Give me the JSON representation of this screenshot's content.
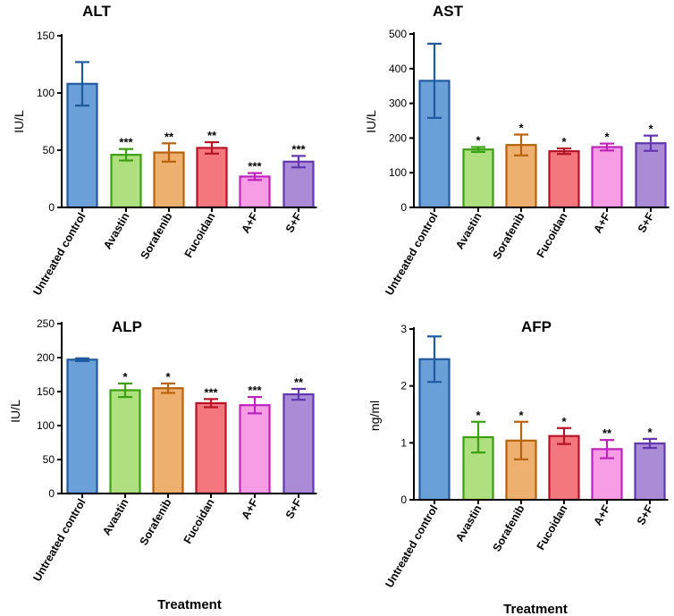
{
  "chart_data": [
    {
      "type": "bar",
      "title": "ALT",
      "ylabel": "IU/L",
      "xlabel": "",
      "ylim": [
        0,
        150
      ],
      "yticks": [
        0,
        50,
        100,
        150
      ],
      "ytick_labels": [
        "0",
        "50",
        "100",
        "150"
      ],
      "categories": [
        "Untreated control",
        "Avastin",
        "Sorafenib",
        "Fucoidan",
        "A+F",
        "S+F"
      ],
      "values": [
        108,
        46,
        48,
        52,
        27,
        40
      ],
      "errors": [
        19,
        5,
        8,
        5,
        3,
        5
      ],
      "significance": [
        "",
        "***",
        "**",
        "**",
        "***",
        "***"
      ]
    },
    {
      "type": "bar",
      "title": "AST",
      "ylabel": "IU/L",
      "xlabel": "",
      "ylim": [
        0,
        500
      ],
      "yticks": [
        0,
        100,
        200,
        300,
        400,
        500
      ],
      "ytick_labels": [
        "0",
        "100",
        "200",
        "300",
        "400",
        "500"
      ],
      "categories": [
        "Untreated control",
        "Avastin",
        "Sorafenib",
        "Fucoidan",
        "A+F",
        "S+F"
      ],
      "values": [
        365,
        167,
        180,
        162,
        174,
        185
      ],
      "errors": [
        107,
        7,
        30,
        8,
        10,
        22
      ],
      "significance": [
        "",
        "*",
        "*",
        "*",
        "*",
        "*"
      ]
    },
    {
      "type": "bar",
      "title": "ALP",
      "ylabel": "IU/L",
      "xlabel": "Treatment",
      "ylim": [
        0,
        250
      ],
      "yticks": [
        0,
        50,
        100,
        150,
        200,
        250
      ],
      "ytick_labels": [
        "0",
        "50",
        "100",
        "150",
        "200",
        "250"
      ],
      "categories": [
        "Untreated control",
        "Avastin",
        "Sorafenib",
        "Fucoidan",
        "A+F",
        "S+F"
      ],
      "values": [
        197,
        152,
        155,
        133,
        130,
        146
      ],
      "errors": [
        2,
        10,
        7,
        6,
        12,
        8
      ],
      "significance": [
        "",
        "*",
        "*",
        "***",
        "***",
        "**"
      ]
    },
    {
      "type": "bar",
      "title": "AFP",
      "ylabel": "ng/ml",
      "xlabel": "Treatment",
      "ylim": [
        0,
        3
      ],
      "yticks": [
        0,
        1,
        2,
        3
      ],
      "ytick_labels": [
        "0",
        "1",
        "2",
        "3"
      ],
      "categories": [
        "Untreated control",
        "Avastin",
        "Sorafenib",
        "Fucoidan",
        "A+F",
        "S+F"
      ],
      "values": [
        2.47,
        1.1,
        1.04,
        1.12,
        0.89,
        0.99
      ],
      "errors": [
        0.4,
        0.27,
        0.33,
        0.14,
        0.16,
        0.08
      ],
      "significance": [
        "",
        "*",
        "*",
        "*",
        "**",
        "*"
      ]
    }
  ],
  "palette": {
    "fills": [
      "#6a9fd8",
      "#aee07f",
      "#eeb06e",
      "#f3777d",
      "#f79de6",
      "#a98bd6"
    ],
    "strokes": [
      "#1f5aa0",
      "#3aa012",
      "#b8620b",
      "#b71324",
      "#c021bd",
      "#6236b0"
    ]
  }
}
